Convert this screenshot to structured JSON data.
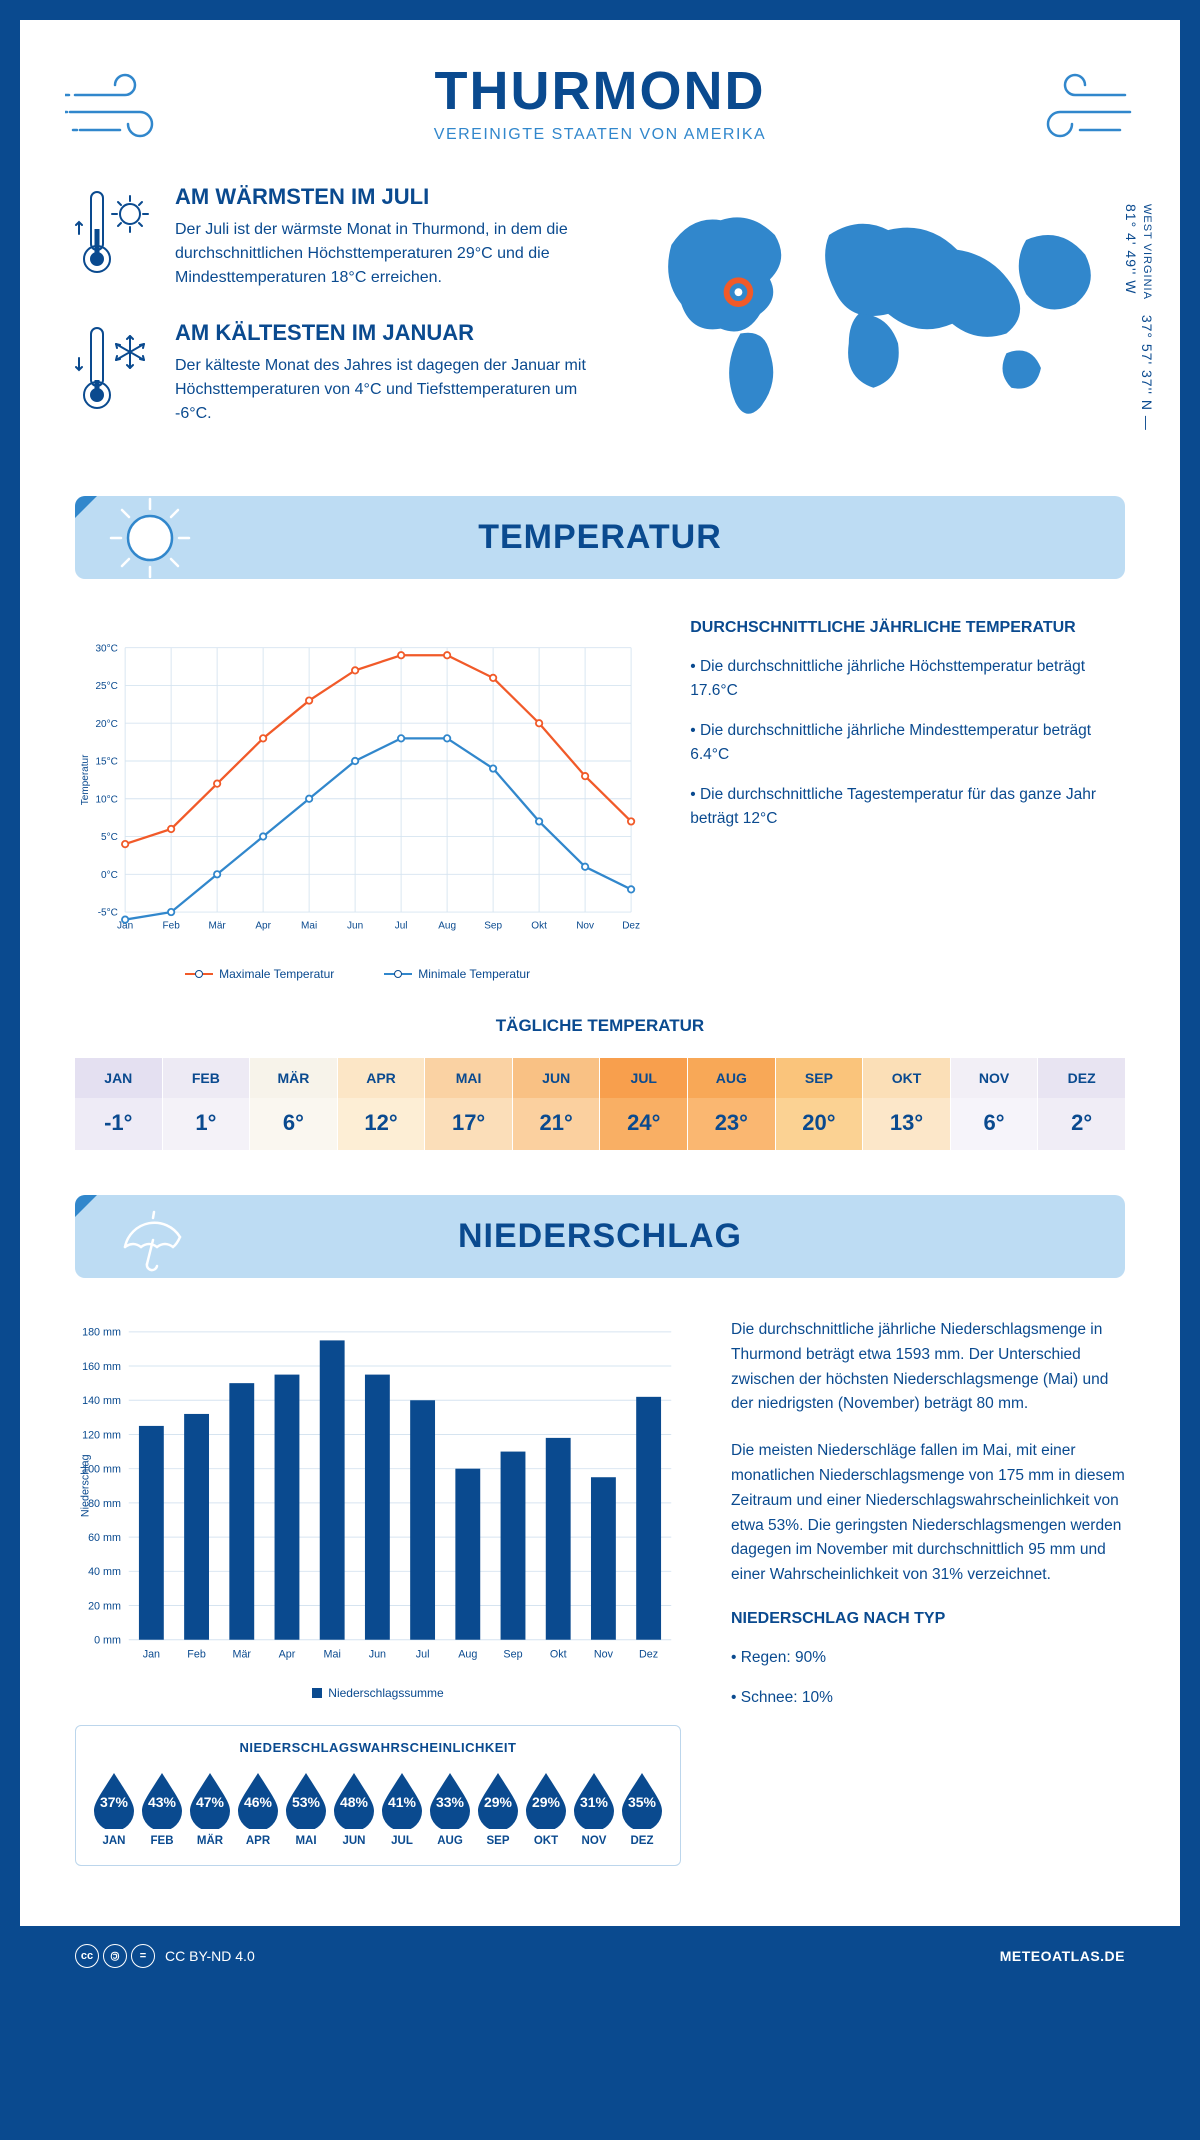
{
  "header": {
    "title": "THURMOND",
    "subtitle": "VEREINIGTE STAATEN VON AMERIKA"
  },
  "coords": {
    "state": "WEST VIRGINIA",
    "text": "37° 57' 37'' N — 81° 4' 49'' W"
  },
  "facts": {
    "warm": {
      "title": "AM WÄRMSTEN IM JULI",
      "text": "Der Juli ist der wärmste Monat in Thurmond, in dem die durchschnittlichen Höchsttemperaturen 29°C und die Mindesttemperaturen 18°C erreichen."
    },
    "cold": {
      "title": "AM KÄLTESTEN IM JANUAR",
      "text": "Der kälteste Monat des Jahres ist dagegen der Januar mit Höchsttemperaturen von 4°C und Tiefsttemperaturen um -6°C."
    }
  },
  "sections": {
    "temp": "TEMPERATUR",
    "precip": "NIEDERSCHLAG"
  },
  "temp_chart": {
    "type": "line",
    "months": [
      "Jan",
      "Feb",
      "Mär",
      "Apr",
      "Mai",
      "Jun",
      "Jul",
      "Aug",
      "Sep",
      "Okt",
      "Nov",
      "Dez"
    ],
    "max": [
      4,
      6,
      12,
      18,
      23,
      27,
      29,
      29,
      26,
      20,
      13,
      7
    ],
    "min": [
      -6,
      -5,
      0,
      5,
      10,
      15,
      18,
      18,
      14,
      7,
      1,
      -2
    ],
    "ylabel": "Temperatur",
    "ylim": [
      -5,
      30
    ],
    "ystep": 5,
    "yunit": "°C",
    "colors": {
      "max": "#f15a29",
      "min": "#3187cc",
      "grid": "#d6e4f0",
      "axis": "#0a4a8f"
    },
    "legend": {
      "max": "Maximale Temperatur",
      "min": "Minimale Temperatur"
    },
    "font_size": 11
  },
  "temp_text": {
    "heading": "DURCHSCHNITTLICHE JÄHRLICHE TEMPERATUR",
    "b1": "• Die durchschnittliche jährliche Höchsttemperatur beträgt 17.6°C",
    "b2": "• Die durchschnittliche jährliche Mindesttemperatur beträgt 6.4°C",
    "b3": "• Die durchschnittliche Tagestemperatur für das ganze Jahr beträgt 12°C"
  },
  "daily_temp": {
    "heading": "TÄGLICHE TEMPERATUR",
    "months": [
      "JAN",
      "FEB",
      "MÄR",
      "APR",
      "MAI",
      "JUN",
      "JUL",
      "AUG",
      "SEP",
      "OKT",
      "NOV",
      "DEZ"
    ],
    "values": [
      "-1°",
      "1°",
      "6°",
      "12°",
      "17°",
      "21°",
      "24°",
      "23°",
      "20°",
      "13°",
      "6°",
      "2°"
    ],
    "head_colors": [
      "#e4e0f1",
      "#edeaf4",
      "#f7f3ea",
      "#fce6c6",
      "#fad2a3",
      "#f9c184",
      "#f89f4d",
      "#f8a857",
      "#fac47b",
      "#fbdfb7",
      "#f2eff6",
      "#e8e4f2"
    ],
    "val_colors": [
      "#eeebf6",
      "#f4f2f8",
      "#faf7f0",
      "#fdeed5",
      "#fbdeb9",
      "#fbd09f",
      "#f9af64",
      "#fab771",
      "#fbd293",
      "#fce7c9",
      "#f6f4fa",
      "#f0edf6"
    ],
    "text_color": "#0a4a8f",
    "hot_text": "#0a4a8f"
  },
  "precip_chart": {
    "type": "bar",
    "months": [
      "Jan",
      "Feb",
      "Mär",
      "Apr",
      "Mai",
      "Jun",
      "Jul",
      "Aug",
      "Sep",
      "Okt",
      "Nov",
      "Dez"
    ],
    "values": [
      125,
      132,
      150,
      155,
      175,
      155,
      140,
      100,
      110,
      118,
      95,
      142
    ],
    "ylabel": "Niederschlag",
    "ylim": [
      0,
      180
    ],
    "ystep": 20,
    "yunit": " mm",
    "bar_color": "#0a4a8f",
    "grid": "#d6e4f0",
    "axis": "#0a4a8f",
    "legend": "Niederschlagssumme",
    "font_size": 11,
    "bar_width": 0.55
  },
  "precip_text": {
    "p1": "Die durchschnittliche jährliche Niederschlagsmenge in Thurmond beträgt etwa 1593 mm. Der Unterschied zwischen der höchsten Niederschlagsmenge (Mai) und der niedrigsten (November) beträgt 80 mm.",
    "p2": "Die meisten Niederschläge fallen im Mai, mit einer monatlichen Niederschlagsmenge von 175 mm in diesem Zeitraum und einer Niederschlagswahrscheinlichkeit von etwa 53%. Die geringsten Niederschlagsmengen werden dagegen im November mit durchschnittlich 95 mm und einer Wahrscheinlichkeit von 31% verzeichnet.",
    "h2": "NIEDERSCHLAG NACH TYP",
    "b1": "• Regen: 90%",
    "b2": "• Schnee: 10%"
  },
  "prob": {
    "title": "NIEDERSCHLAGSWAHRSCHEINLICHKEIT",
    "months": [
      "JAN",
      "FEB",
      "MÄR",
      "APR",
      "MAI",
      "JUN",
      "JUL",
      "AUG",
      "SEP",
      "OKT",
      "NOV",
      "DEZ"
    ],
    "values": [
      "37%",
      "43%",
      "47%",
      "46%",
      "53%",
      "48%",
      "41%",
      "33%",
      "29%",
      "29%",
      "31%",
      "35%"
    ],
    "drop_color": "#0a4a8f"
  },
  "footer": {
    "license": "CC BY-ND 4.0",
    "brand": "METEOATLAS.DE"
  }
}
